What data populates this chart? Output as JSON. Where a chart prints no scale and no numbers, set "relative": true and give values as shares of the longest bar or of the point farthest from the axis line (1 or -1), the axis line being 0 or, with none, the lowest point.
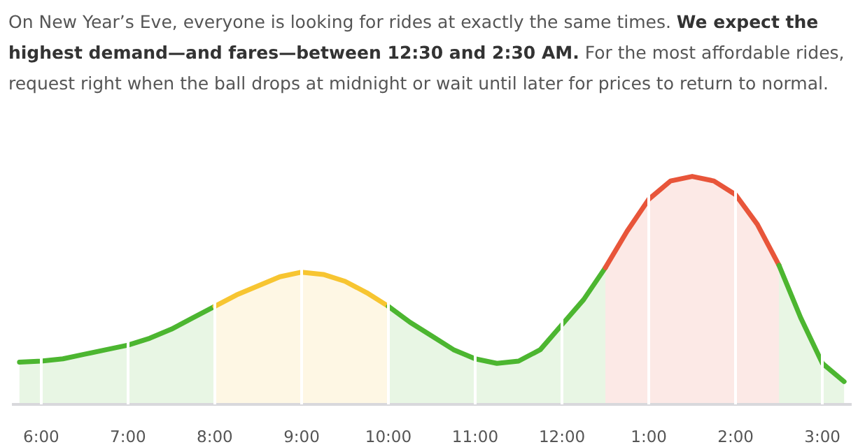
{
  "chart_data": {
    "type": "area",
    "title": "On New Year’s Eve, everyone is looking for rides at exactly the same times.",
    "subtitle": "We expect the highest demand—and fares—between 12:30 and 2:30 AM.",
    "annotations": [
      "For the most affordable rides, request right when the ball drops at midnight or wait until later for prices to return to normal."
    ],
    "relative": true,
    "grid": "x",
    "categories": [
      null,
      "6:00",
      null,
      null,
      null,
      "7:00",
      null,
      null,
      null,
      "8:00",
      null,
      null,
      null,
      "9:00",
      null,
      null,
      null,
      "10:00",
      null,
      null,
      null,
      "11:00",
      null,
      null,
      null,
      "12:00",
      null,
      null,
      null,
      "1:00",
      null,
      null,
      null,
      "2:00",
      null,
      null,
      null,
      "3:00",
      null
    ],
    "series": [
      {
        "color": "#4cb630",
        "values": [
          0.185,
          0.19,
          0.2,
          0.22,
          0.24,
          0.26,
          0.29,
          0.33,
          0.38,
          0.43,
          null,
          null,
          null,
          null,
          null,
          null,
          null,
          null,
          null,
          null,
          null,
          null,
          null,
          null,
          null,
          null,
          null,
          null,
          null,
          null,
          null,
          null,
          null,
          null,
          null,
          null,
          null,
          null,
          null
        ]
      },
      {
        "color": "#f7c531",
        "values": [
          null,
          null,
          null,
          null,
          null,
          null,
          null,
          null,
          null,
          0.43,
          0.48,
          0.52,
          0.56,
          0.58,
          0.57,
          0.54,
          0.49,
          0.43,
          null,
          null,
          null,
          null,
          null,
          null,
          null,
          null,
          null,
          null,
          null,
          null,
          null,
          null,
          null,
          null,
          null,
          null,
          null,
          null,
          null
        ]
      },
      {
        "color": "#4cb630",
        "values": [
          null,
          null,
          null,
          null,
          null,
          null,
          null,
          null,
          null,
          null,
          null,
          null,
          null,
          null,
          null,
          null,
          null,
          0.43,
          0.36,
          0.3,
          0.24,
          0.2,
          0.18,
          0.19,
          0.24,
          0.35,
          0.46,
          0.6,
          null,
          null,
          null,
          null,
          null,
          null,
          null,
          null,
          null,
          null,
          null
        ]
      },
      {
        "color": "#e8553a",
        "values": [
          null,
          null,
          null,
          null,
          null,
          null,
          null,
          null,
          null,
          null,
          null,
          null,
          null,
          null,
          null,
          null,
          null,
          null,
          null,
          null,
          null,
          null,
          null,
          null,
          null,
          null,
          null,
          0.6,
          0.76,
          0.9,
          0.98,
          1.0,
          0.98,
          0.92,
          0.79,
          0.61,
          null,
          null,
          null
        ]
      },
      {
        "color": "#4cb630",
        "values": [
          null,
          null,
          null,
          null,
          null,
          null,
          null,
          null,
          null,
          null,
          null,
          null,
          null,
          null,
          null,
          null,
          null,
          null,
          null,
          null,
          null,
          null,
          null,
          null,
          null,
          null,
          null,
          null,
          null,
          null,
          null,
          null,
          null,
          null,
          null,
          0.61,
          0.38,
          0.18,
          0.1
        ]
      }
    ]
  }
}
